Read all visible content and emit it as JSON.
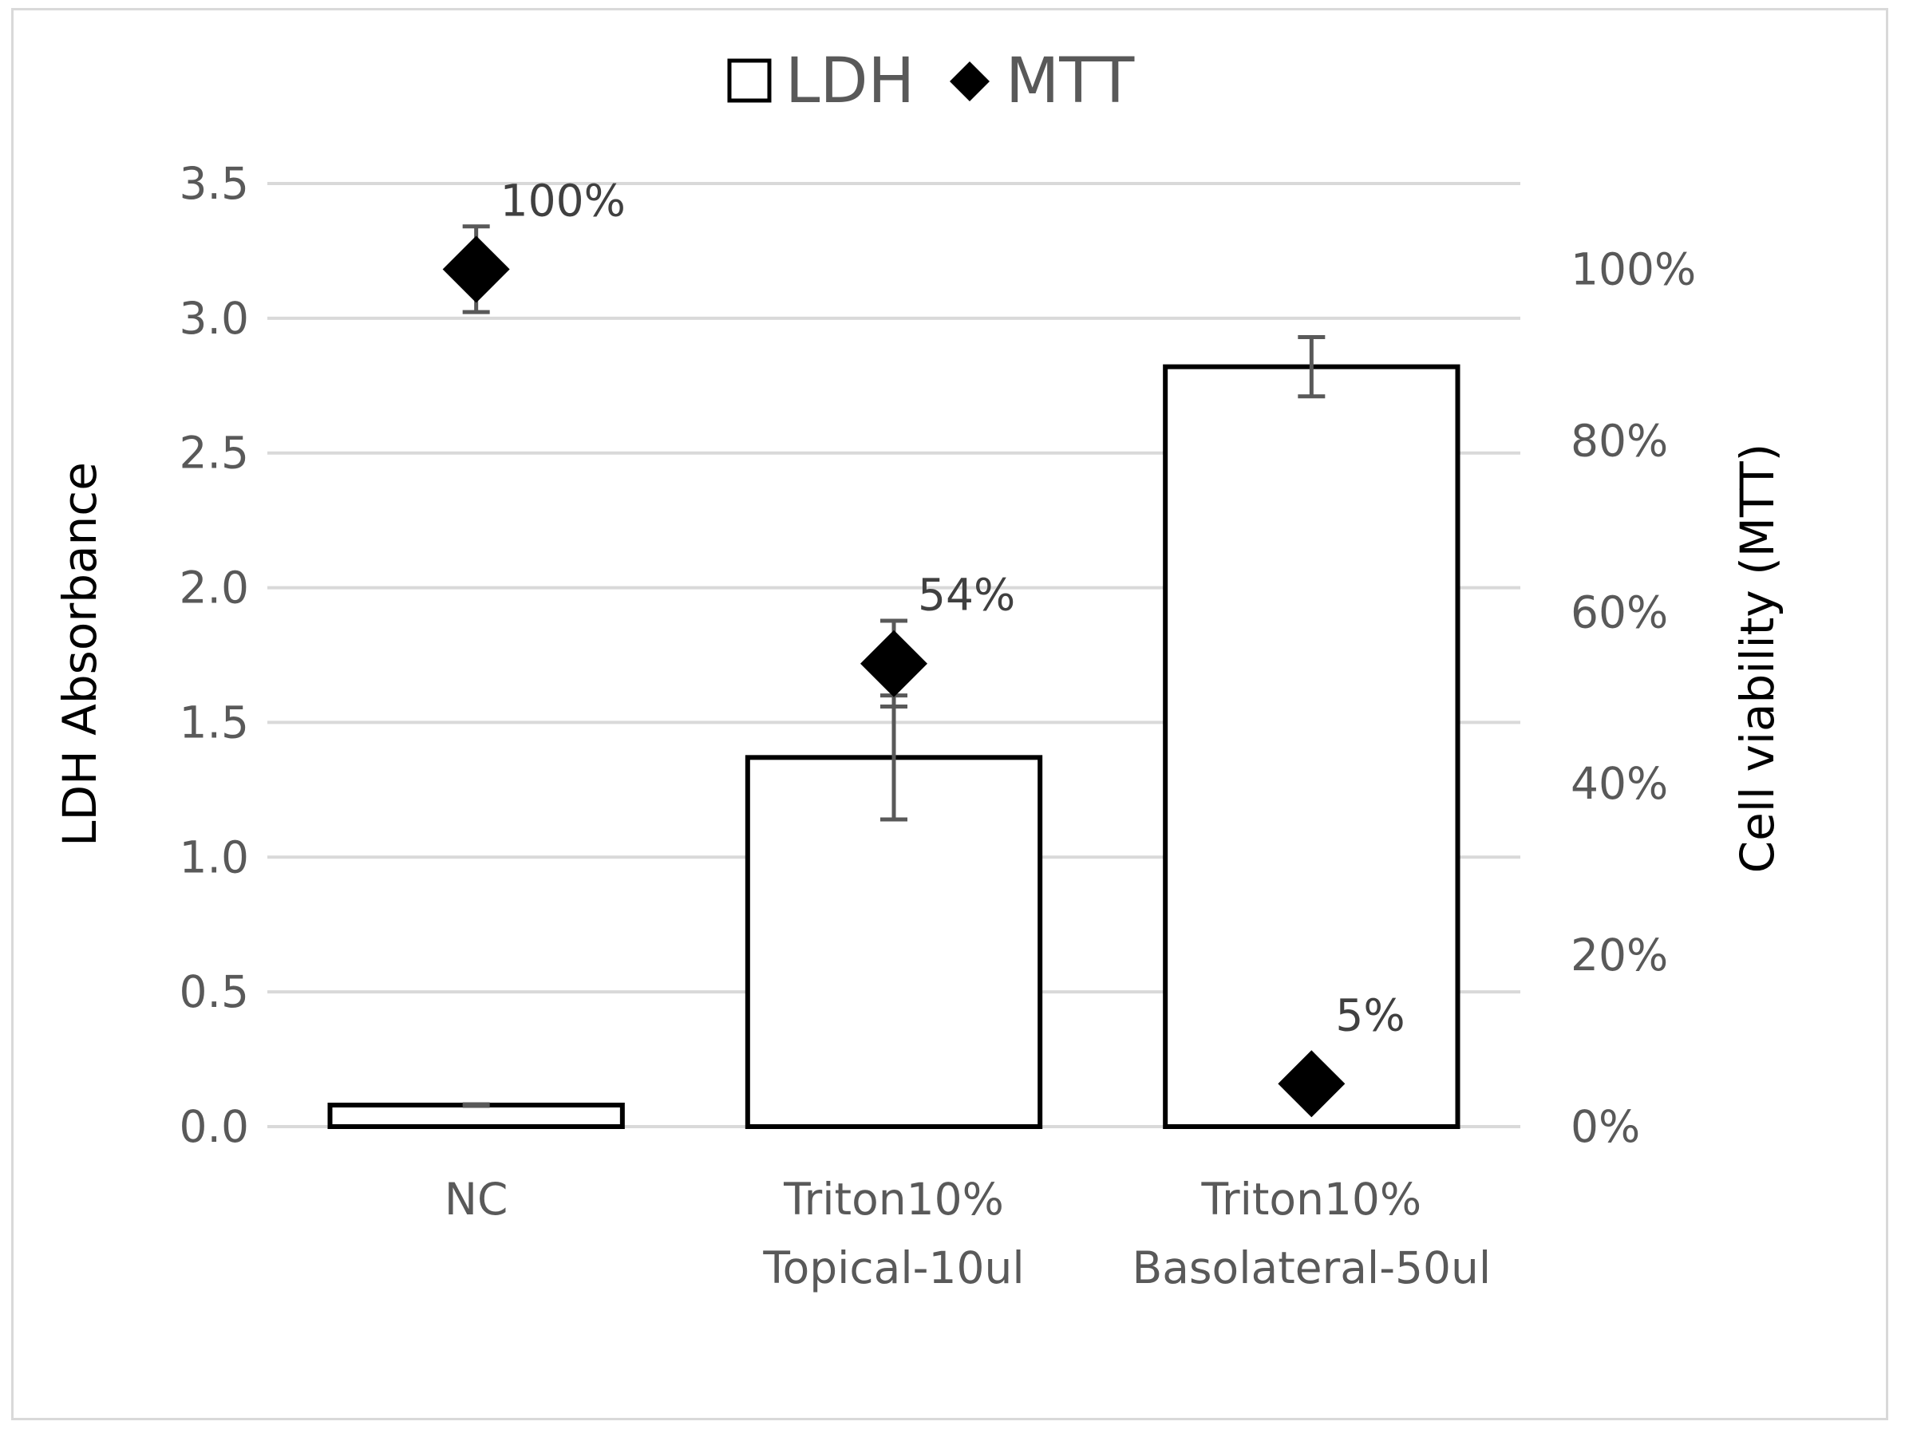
{
  "chart_data": {
    "type": "bar",
    "categories": [
      [
        "NC"
      ],
      [
        "Triton10%",
        "Topical-10ul"
      ],
      [
        "Triton10%",
        "Basolateral-50ul"
      ]
    ],
    "series": [
      {
        "name": "LDH",
        "type": "bar",
        "axis": "left",
        "values": [
          0.08,
          1.37,
          2.82
        ],
        "error": [
          0.0,
          0.23,
          0.11
        ],
        "fill": "#ffffff",
        "stroke": "#000000"
      },
      {
        "name": "MTT",
        "type": "scatter",
        "marker": "diamond",
        "axis": "right",
        "values": [
          1.0,
          0.54,
          0.05
        ],
        "error": [
          0.05,
          0.05,
          0.0
        ],
        "data_labels": [
          "100%",
          "54%",
          "5%"
        ],
        "fill": "#000000"
      }
    ],
    "ylabel": "LDH Absorbance",
    "ylim": [
      0,
      3.5
    ],
    "yticks": [
      "0.0",
      "0.5",
      "1.0",
      "1.5",
      "2.0",
      "2.5",
      "3.0",
      "3.5"
    ],
    "y2label": "Cell viability (MTT)",
    "y2lim": [
      0,
      1.1
    ],
    "y2ticks": [
      "0%",
      "20%",
      "40%",
      "60%",
      "80%",
      "100%"
    ],
    "legend_position": "top",
    "grid": true
  }
}
